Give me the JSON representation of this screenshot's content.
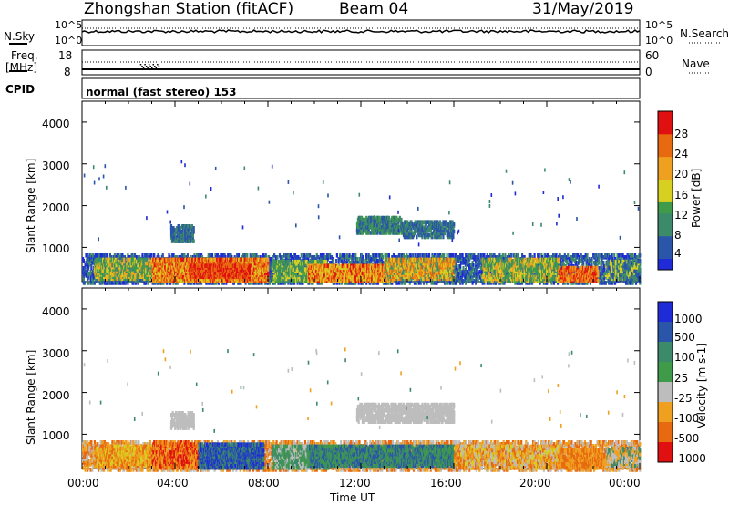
{
  "header": {
    "title_left": "Zhongshan Station (fitACF)",
    "beam": "Beam 04",
    "date": "31/May/2019"
  },
  "top_panels": {
    "nsky_label": "N.Sky",
    "nsearch_label": "N.Search",
    "nsky_ticks": [
      "10^5",
      "10^0"
    ],
    "nsky_right_ticks": [
      "10^5",
      "10^0"
    ],
    "freq_label": "Freq.",
    "freq_unit": "[MHz]",
    "freq_ticks": [
      "18",
      "8"
    ],
    "nave_ticks": [
      "60",
      "0"
    ],
    "nave_label": "Nave",
    "cpid_label": "CPID",
    "cpid_text": "normal (fast stereo) 153"
  },
  "colors": {
    "blue": "#1f2bd6",
    "darkblue": "#2a55a8",
    "teal": "#3c8a6a",
    "green": "#3f9a4a",
    "yellow": "#d8d020",
    "orange": "#f0a020",
    "darkorange": "#e86a10",
    "red": "#e01010",
    "grey": "#bdbdbd"
  },
  "chart_data": [
    {
      "type": "heatmap",
      "title": "Power",
      "ylabel": "Slant Range [km]",
      "xlabel": "",
      "ylim": [
        180,
        4500
      ],
      "yticks": [
        "4000",
        "3000",
        "2000",
        "1000"
      ],
      "xlim_hours": [
        0,
        24
      ],
      "colorbar_label": "Power [dB]",
      "colorbar_ticks": [
        "28",
        "24",
        "20",
        "16",
        "12",
        "8",
        "4"
      ],
      "colorbar_range": [
        0,
        30
      ]
    },
    {
      "type": "heatmap",
      "title": "Velocity",
      "ylabel": "Slant Range [km]",
      "xlabel": "Time UT",
      "ylim": [
        180,
        4500
      ],
      "yticks": [
        "4000",
        "3000",
        "2000",
        "1000"
      ],
      "xticks": [
        "00:00",
        "04:00",
        "08:00",
        "12:00",
        "16:00",
        "20:00",
        "00:00"
      ],
      "colorbar_label": "Velocity [m s-1]",
      "colorbar_ticks": [
        "1000",
        "500",
        "100",
        "25",
        "-25",
        "-100",
        "-500",
        "-1000"
      ]
    }
  ]
}
